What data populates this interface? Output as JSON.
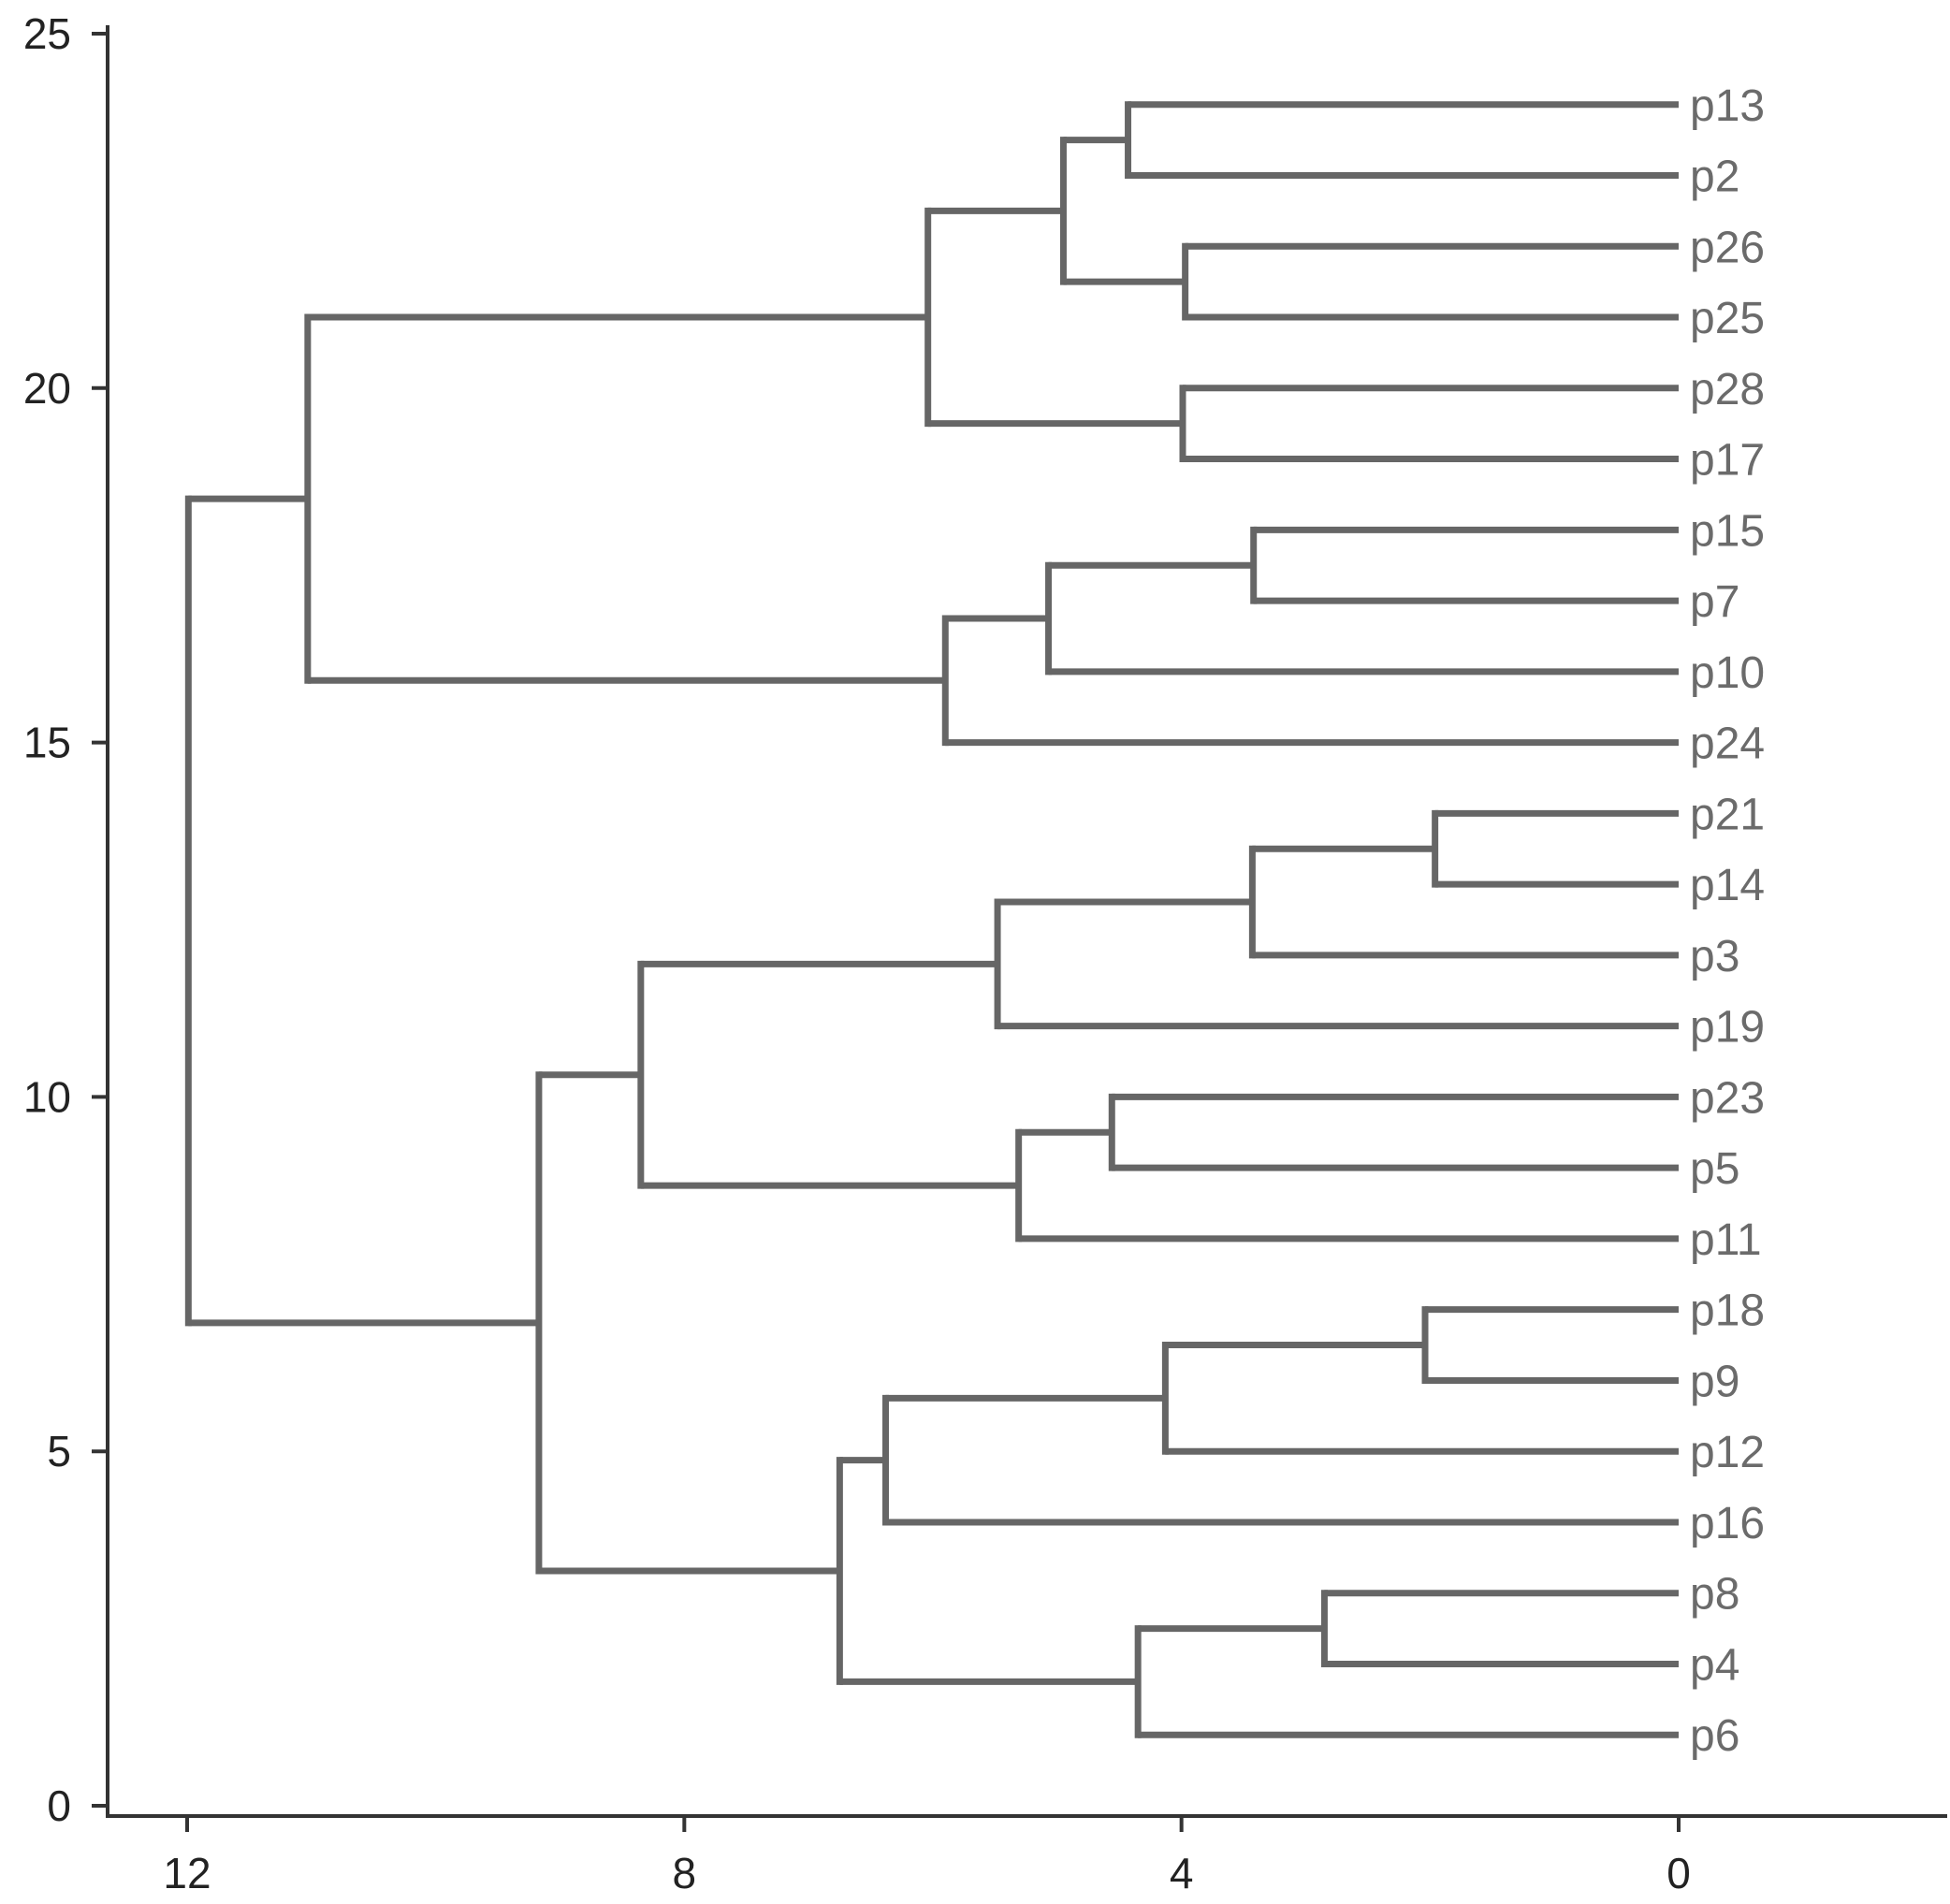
{
  "chart_data": {
    "type": "dendrogram",
    "orientation": "horizontal, leaves on right",
    "title": "",
    "xlabel": "",
    "ylabel": "",
    "xlim": [
      12,
      0
    ],
    "ylim": [
      0,
      25
    ],
    "x_ticks": [
      "12",
      "8",
      "4",
      "0"
    ],
    "x_tick_values": [
      12,
      8,
      4,
      0
    ],
    "y_ticks": [
      "0",
      "5",
      "10",
      "15",
      "20",
      "25"
    ],
    "y_tick_values": [
      0,
      5,
      10,
      15,
      20,
      25
    ],
    "grid": false,
    "colors": {
      "branch": "#666666",
      "axis": "#333333",
      "leaf_label": "#6b6b6b"
    },
    "leaves": [
      "p13",
      "p2",
      "p26",
      "p25",
      "p28",
      "p17",
      "p15",
      "p7",
      "p10",
      "p24",
      "p21",
      "p14",
      "p3",
      "p19",
      "p23",
      "p5",
      "p11",
      "p18",
      "p9",
      "p12",
      "p16",
      "p8",
      "p4",
      "p6"
    ],
    "tree": {
      "height": 11.99,
      "children": [
        {
          "height": 11.03,
          "children": [
            {
              "height": 6.04,
              "children": [
                {
                  "height": 4.95,
                  "children": [
                    {
                      "height": 4.43,
                      "children": [
                        "p13",
                        "p2"
                      ]
                    },
                    {
                      "height": 3.97,
                      "children": [
                        "p26",
                        "p25"
                      ]
                    }
                  ]
                },
                {
                  "height": 3.99,
                  "children": [
                    "p28",
                    "p17"
                  ]
                }
              ]
            },
            {
              "height": 5.9,
              "children": [
                {
                  "height": 5.07,
                  "children": [
                    {
                      "height": 3.42,
                      "children": [
                        "p15",
                        "p7"
                      ]
                    },
                    "p10"
                  ]
                },
                "p24"
              ]
            }
          ]
        },
        {
          "height": 9.17,
          "children": [
            {
              "height": 8.35,
              "children": [
                {
                  "height": 5.48,
                  "children": [
                    {
                      "height": 3.43,
                      "children": [
                        {
                          "height": 1.96,
                          "children": [
                            "p21",
                            "p14"
                          ]
                        },
                        "p3"
                      ]
                    },
                    "p19"
                  ]
                },
                {
                  "height": 5.31,
                  "children": [
                    {
                      "height": 4.56,
                      "children": [
                        "p23",
                        "p5"
                      ]
                    },
                    "p11"
                  ]
                }
              ]
            },
            {
              "height": 6.75,
              "children": [
                {
                  "height": 6.38,
                  "children": [
                    {
                      "height": 4.13,
                      "children": [
                        {
                          "height": 2.04,
                          "children": [
                            "p18",
                            "p9"
                          ]
                        },
                        "p12"
                      ]
                    },
                    "p16"
                  ]
                },
                {
                  "height": 4.35,
                  "children": [
                    {
                      "height": 2.85,
                      "children": [
                        "p8",
                        "p4"
                      ]
                    },
                    "p6"
                  ]
                }
              ]
            }
          ]
        }
      ]
    }
  }
}
